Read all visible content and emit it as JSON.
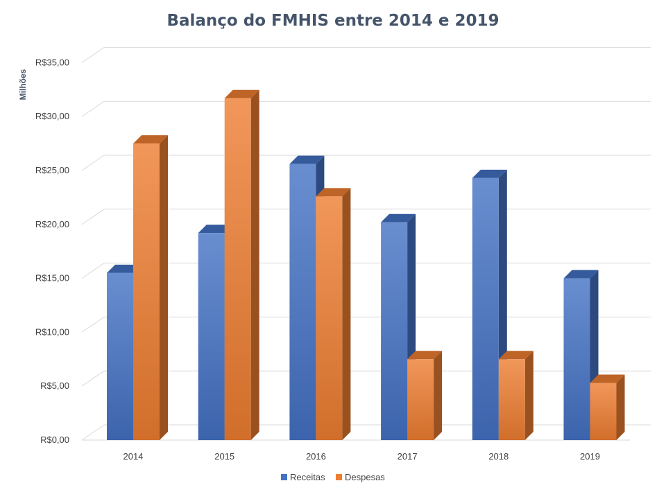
{
  "chart_data": {
    "type": "bar",
    "title": "Balanço do FMHIS entre 2014 e 2019",
    "xlabel": "",
    "ylabel": "Milhões",
    "categories": [
      "2014",
      "2015",
      "2016",
      "2017",
      "2018",
      "2019"
    ],
    "series": [
      {
        "name": "Receitas",
        "values": [
          15.5,
          19.2,
          25.6,
          20.2,
          24.3,
          15.0
        ],
        "color": "#4472c4"
      },
      {
        "name": "Despesas",
        "values": [
          27.5,
          31.7,
          22.6,
          7.5,
          7.5,
          5.3
        ],
        "color": "#ed7d31"
      }
    ],
    "ylim": [
      0,
      35
    ],
    "yticks": [
      0,
      5,
      10,
      15,
      20,
      25,
      30,
      35
    ],
    "ytick_labels": [
      "R$0,00",
      "R$5,00",
      "R$10,00",
      "R$15,00",
      "R$20,00",
      "R$25,00",
      "R$30,00",
      "R$35,00"
    ],
    "grid": true,
    "legend_position": "bottom",
    "style": "3d-column"
  }
}
